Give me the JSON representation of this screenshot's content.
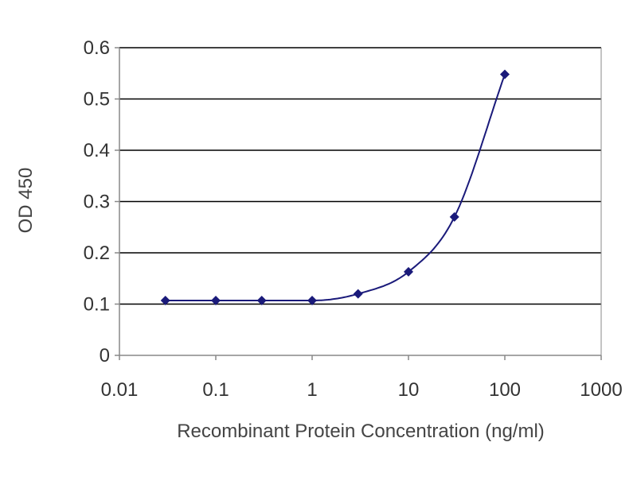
{
  "chart_data": {
    "type": "scatter",
    "xlabel": "Recombinant Protein Concentration (ng/ml)",
    "ylabel": "OD 450",
    "x_scale": "log",
    "xlim": [
      0.01,
      1000
    ],
    "ylim": [
      0,
      0.6
    ],
    "x_ticks": [
      "0.01",
      "0.1",
      "1",
      "10",
      "100",
      "1000"
    ],
    "y_ticks": [
      "0",
      "0.1",
      "0.2",
      "0.3",
      "0.4",
      "0.5",
      "0.6"
    ],
    "grid": "horizontal",
    "legend": "none",
    "colors": {
      "series": "#1a1a7a",
      "grid": "#000000",
      "axis": "#888888"
    },
    "series": [
      {
        "x": [
          0.03,
          0.1,
          0.3,
          1,
          3,
          10,
          30,
          100
        ],
        "y": [
          0.107,
          0.107,
          0.107,
          0.107,
          0.12,
          0.163,
          0.27,
          0.548
        ],
        "fit_curve": true
      }
    ]
  }
}
